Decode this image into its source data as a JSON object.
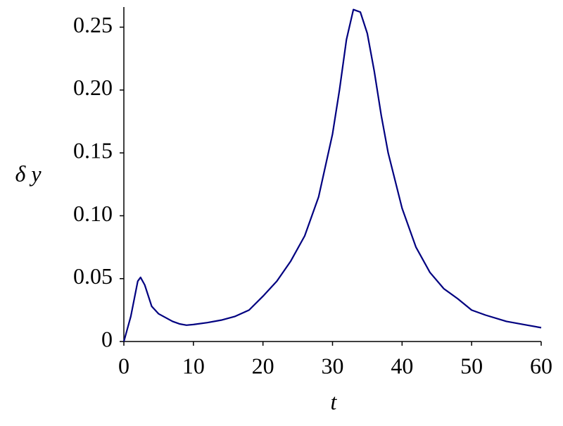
{
  "chart_data": {
    "type": "line",
    "xlabel": "t",
    "ylabel": "δ y",
    "x": [
      0,
      1,
      2,
      2.4,
      3,
      4,
      5,
      6,
      7,
      8,
      9,
      10,
      12,
      14,
      16,
      18,
      20,
      22,
      24,
      26,
      28,
      30,
      31,
      32,
      33,
      34,
      35,
      36,
      37,
      38,
      40,
      42,
      44,
      46,
      48,
      50,
      52,
      55,
      58,
      60
    ],
    "series": [
      {
        "color": "#000080",
        "values": [
          0,
          0.02,
          0.048,
          0.051,
          0.045,
          0.028,
          0.022,
          0.019,
          0.016,
          0.014,
          0.013,
          0.0135,
          0.015,
          0.017,
          0.02,
          0.025,
          0.036,
          0.048,
          0.064,
          0.084,
          0.115,
          0.165,
          0.2,
          0.24,
          0.264,
          0.262,
          0.245,
          0.215,
          0.18,
          0.15,
          0.106,
          0.075,
          0.055,
          0.042,
          0.034,
          0.025,
          0.021,
          0.016,
          0.013,
          0.011
        ]
      }
    ],
    "xlim": [
      0,
      60
    ],
    "xticks": [
      0,
      10,
      20,
      30,
      40,
      50,
      60
    ],
    "ylim": [
      0,
      0.266
    ],
    "yticks": [
      0,
      0.05,
      {
        "value": 0.1,
        "label": "0.10"
      },
      0.15,
      {
        "value": 0.2,
        "label": "0.20"
      },
      0.25
    ]
  }
}
